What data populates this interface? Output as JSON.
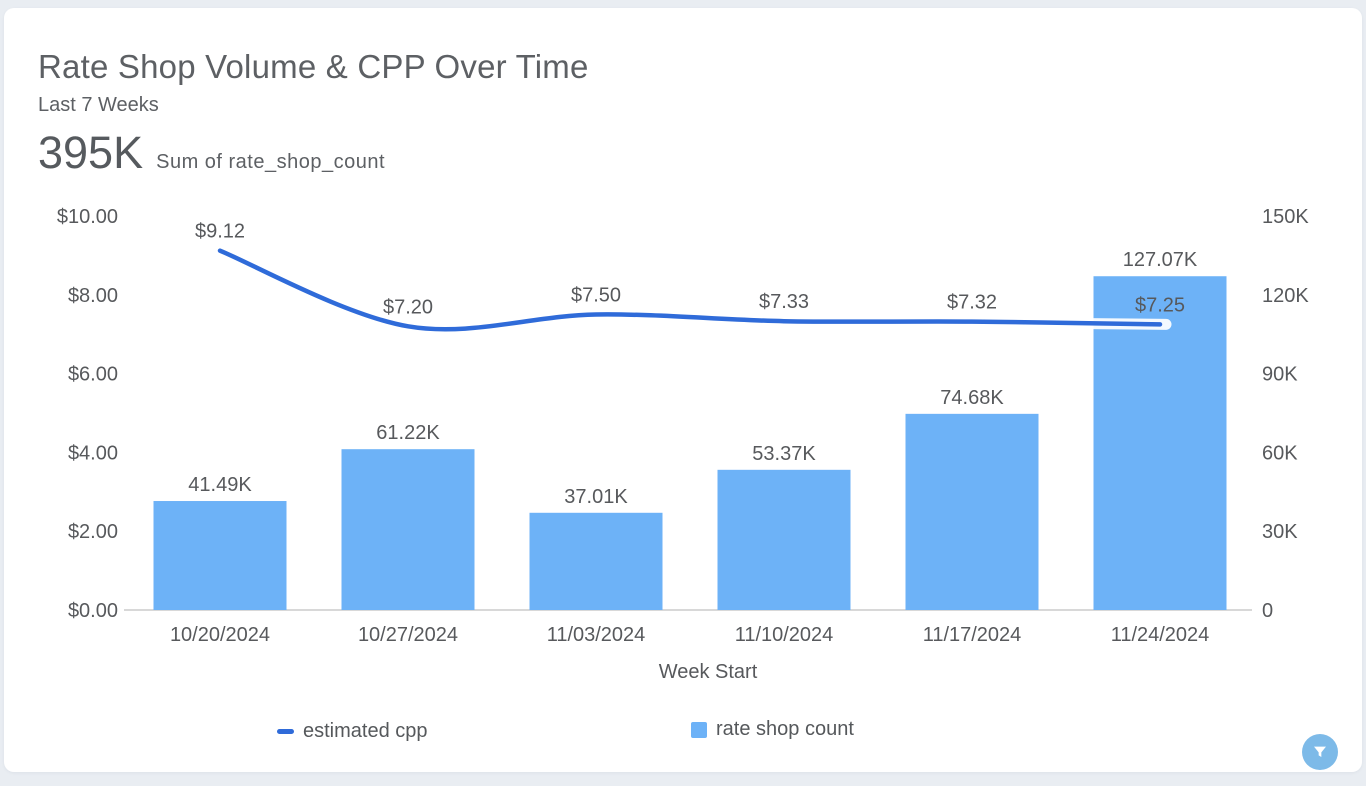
{
  "card": {
    "title": "Rate Shop Volume & CPP Over Time",
    "subtitle": "Last 7 Weeks",
    "kpi_value": "395K",
    "kpi_label": "Sum of rate_shop_count"
  },
  "chart_data": {
    "type": "combo",
    "categories": [
      "10/20/2024",
      "10/27/2024",
      "11/03/2024",
      "11/10/2024",
      "11/17/2024",
      "11/24/2024"
    ],
    "x_axis_title": "Week Start",
    "series": [
      {
        "name": "estimated cpp",
        "type": "line",
        "axis": "left",
        "color": "#2f6bd9",
        "values": [
          9.12,
          7.2,
          7.5,
          7.33,
          7.32,
          7.25
        ],
        "labels": [
          "$9.12",
          "$7.20",
          "$7.50",
          "$7.33",
          "$7.32",
          "$7.25"
        ]
      },
      {
        "name": "rate shop count",
        "type": "bar",
        "axis": "right",
        "color": "#6db2f7",
        "values": [
          41490,
          61220,
          37010,
          53370,
          74680,
          127070
        ],
        "labels": [
          "41.49K",
          "61.22K",
          "37.01K",
          "53.37K",
          "74.68K",
          "127.07K"
        ]
      }
    ],
    "left_axis": {
      "min": 0,
      "max": 10,
      "ticks": [
        {
          "v": 0,
          "label": "$0.00"
        },
        {
          "v": 2,
          "label": "$2.00"
        },
        {
          "v": 4,
          "label": "$4.00"
        },
        {
          "v": 6,
          "label": "$6.00"
        },
        {
          "v": 8,
          "label": "$8.00"
        },
        {
          "v": 10,
          "label": "$10.00"
        }
      ]
    },
    "right_axis": {
      "min": 0,
      "max": 150000,
      "ticks": [
        {
          "v": 0,
          "label": "0"
        },
        {
          "v": 30000,
          "label": "30K"
        },
        {
          "v": 60000,
          "label": "60K"
        },
        {
          "v": 90000,
          "label": "90K"
        },
        {
          "v": 120000,
          "label": "120K"
        },
        {
          "v": 150000,
          "label": "150K"
        }
      ]
    },
    "grid": false,
    "legend_position": "bottom"
  },
  "legend": {
    "items": [
      {
        "label": "estimated cpp",
        "swatch": "line",
        "color": "#2f6bd9"
      },
      {
        "label": "rate shop count",
        "swatch": "square",
        "color": "#6db2f7"
      }
    ]
  },
  "filter_button": {
    "icon": "funnel-icon",
    "color": "#7dbae8"
  },
  "colors": {
    "page_bg": "#e9edf2",
    "card_bg": "#ffffff",
    "axis_line": "#d8d8d8",
    "text": "#57595c"
  }
}
